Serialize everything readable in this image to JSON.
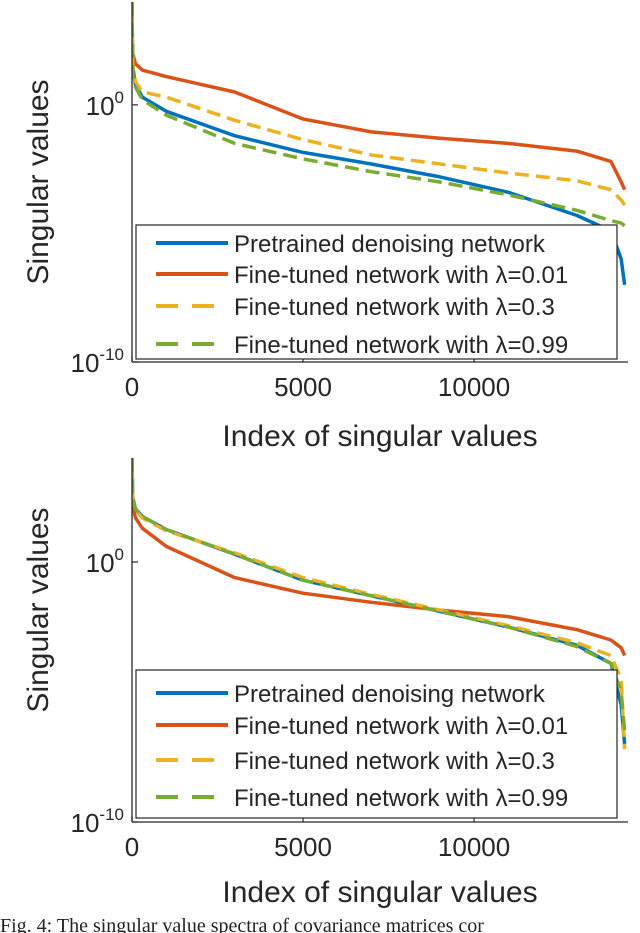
{
  "chart_data": [
    {
      "type": "line",
      "title": "",
      "xlabel": "Index of singular values",
      "ylabel": "Singular values",
      "x_scale": "linear",
      "y_scale": "log",
      "xlim": [
        0,
        14500
      ],
      "ylim_exponent": [
        -10,
        4
      ],
      "xticks": [
        0,
        5000,
        10000
      ],
      "xtick_labels": [
        "0",
        "5000",
        "10000"
      ],
      "ytick_labels": [
        {
          "base": "10",
          "exp": "0",
          "exponent": 0
        },
        {
          "base": "10",
          "exp": "-10",
          "exponent": -10
        }
      ],
      "grid": false,
      "legend_position": "lower-left inside",
      "series": [
        {
          "name": "Pretrained denoising network",
          "color": "#0072BD",
          "dashed": false,
          "x": [
            0,
            20,
            100,
            300,
            1000,
            3000,
            5000,
            7000,
            9000,
            11000,
            13000,
            14000,
            14300,
            14400
          ],
          "log10_y": [
            4.0,
            1.5,
            0.8,
            0.3,
            -0.25,
            -1.2,
            -1.85,
            -2.3,
            -2.8,
            -3.4,
            -4.3,
            -4.9,
            -6.0,
            -7.0
          ]
        },
        {
          "name": "Fine-tuned network with λ=0.01",
          "color": "#D95319",
          "dashed": false,
          "x": [
            0,
            20,
            100,
            300,
            1000,
            3000,
            5000,
            7000,
            9000,
            11000,
            13000,
            14000,
            14300,
            14400
          ],
          "log10_y": [
            3.0,
            2.0,
            1.6,
            1.35,
            1.1,
            0.5,
            -0.55,
            -1.05,
            -1.3,
            -1.5,
            -1.8,
            -2.2,
            -3.0,
            -3.3
          ]
        },
        {
          "name": "Fine-tuned network with λ=0.3",
          "color": "#EDB120",
          "dashed": true,
          "x": [
            0,
            20,
            100,
            300,
            1000,
            3000,
            5000,
            7000,
            9000,
            11000,
            13000,
            14000,
            14300,
            14400
          ],
          "log10_y": [
            3.5,
            1.6,
            0.9,
            0.5,
            0.3,
            -0.6,
            -1.35,
            -1.95,
            -2.3,
            -2.65,
            -2.95,
            -3.3,
            -3.7,
            -3.9
          ]
        },
        {
          "name": "Fine-tuned network with λ=0.99",
          "color": "#77AC30",
          "dashed": true,
          "x": [
            0,
            20,
            100,
            300,
            1000,
            3000,
            5000,
            7000,
            9000,
            11000,
            13000,
            14000,
            14300,
            14400
          ],
          "log10_y": [
            4.0,
            1.3,
            0.7,
            0.2,
            -0.4,
            -1.5,
            -2.1,
            -2.6,
            -3.0,
            -3.5,
            -4.1,
            -4.5,
            -4.6,
            -4.7
          ]
        }
      ]
    },
    {
      "type": "line",
      "title": "",
      "xlabel": "Index of singular values",
      "ylabel": "Singular values",
      "x_scale": "linear",
      "y_scale": "log",
      "xlim": [
        0,
        14500
      ],
      "ylim_exponent": [
        -10,
        4
      ],
      "xticks": [
        0,
        5000,
        10000
      ],
      "xtick_labels": [
        "0",
        "5000",
        "10000"
      ],
      "ytick_labels": [
        {
          "base": "10",
          "exp": "0",
          "exponent": 0
        },
        {
          "base": "10",
          "exp": "-10",
          "exponent": -10
        }
      ],
      "grid": false,
      "legend_position": "lower-left inside",
      "series": [
        {
          "name": "Pretrained denoising network",
          "color": "#0072BD",
          "dashed": false,
          "x": [
            0,
            20,
            100,
            300,
            1000,
            3000,
            5000,
            7000,
            9000,
            11000,
            13000,
            14000,
            14300,
            14400
          ],
          "log10_y": [
            4.0,
            2.5,
            2.05,
            1.75,
            1.25,
            0.3,
            -0.7,
            -1.3,
            -1.9,
            -2.5,
            -3.2,
            -3.9,
            -5.5,
            -7.0
          ]
        },
        {
          "name": "Fine-tuned network with λ=0.01",
          "color": "#D95319",
          "dashed": false,
          "x": [
            0,
            20,
            100,
            300,
            1000,
            3000,
            5000,
            7000,
            9000,
            11000,
            13000,
            14000,
            14300,
            14400
          ],
          "log10_y": [
            3.0,
            2.2,
            1.7,
            1.3,
            0.6,
            -0.6,
            -1.2,
            -1.55,
            -1.85,
            -2.1,
            -2.6,
            -3.0,
            -3.3,
            -3.6
          ]
        },
        {
          "name": "Fine-tuned network with λ=0.3",
          "color": "#EDB120",
          "dashed": true,
          "x": [
            0,
            20,
            100,
            300,
            1000,
            3000,
            5000,
            7000,
            9000,
            11000,
            13000,
            14000,
            14300,
            14400
          ],
          "log10_y": [
            3.5,
            2.4,
            2.0,
            1.7,
            1.2,
            0.35,
            -0.6,
            -1.25,
            -1.85,
            -2.45,
            -3.1,
            -3.6,
            -4.5,
            -7.2
          ]
        },
        {
          "name": "Fine-tuned network with λ=0.99",
          "color": "#77AC30",
          "dashed": true,
          "x": [
            0,
            20,
            100,
            300,
            1000,
            3000,
            5000,
            7000,
            9000,
            11000,
            13000,
            14000,
            14300,
            14400
          ],
          "log10_y": [
            4.0,
            2.5,
            2.05,
            1.75,
            1.25,
            0.3,
            -0.7,
            -1.3,
            -1.9,
            -2.5,
            -3.25,
            -3.9,
            -5.0,
            -6.5
          ]
        }
      ]
    }
  ],
  "caption": "Fig. 4: The singular value spectra of covariance matrices cor"
}
